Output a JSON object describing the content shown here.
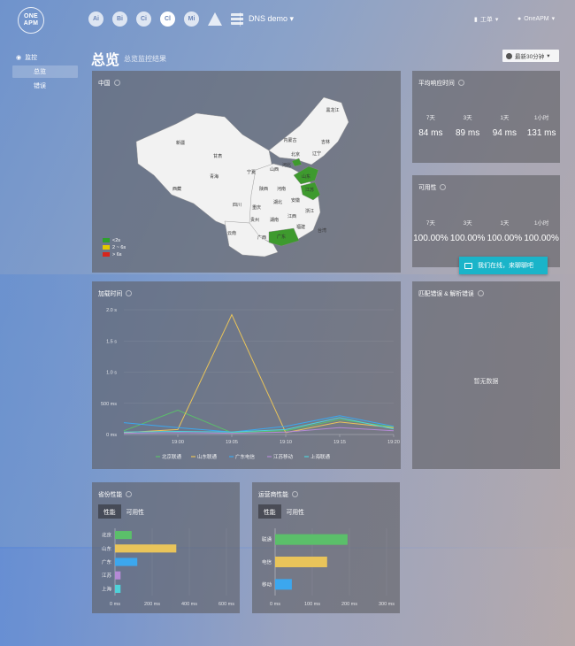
{
  "header": {
    "logo_line1": "ONE",
    "logo_line2": "APM",
    "nav_icons": [
      {
        "name": "ai-icon",
        "label": "Ai"
      },
      {
        "name": "bi-icon",
        "label": "Bi"
      },
      {
        "name": "ci-icon",
        "label": "Ci"
      },
      {
        "name": "cl-icon",
        "label": "Cl"
      },
      {
        "name": "mi-icon",
        "label": "Mi"
      },
      {
        "name": "alert-icon",
        "label": ""
      },
      {
        "name": "list-icon",
        "label": ""
      }
    ],
    "app_name": "DNS demo",
    "tickets": "工单",
    "user": "OneAPM"
  },
  "sidebar": {
    "section": "监控",
    "items": [
      {
        "label": "总览",
        "active": true
      },
      {
        "label": "错误",
        "active": false
      }
    ]
  },
  "page": {
    "title": "总览",
    "subtitle": "总览监控结果",
    "time_range": "最新30分钟"
  },
  "china_map": {
    "title": "中国",
    "legend": [
      {
        "label": "<2s",
        "color": "#2ea02e"
      },
      {
        "label": "2 ~ 6s",
        "color": "#e3c800"
      },
      {
        "label": "> 6s",
        "color": "#d7261e"
      }
    ],
    "provinces": [
      "新疆",
      "西藏",
      "青海",
      "甘肃",
      "内蒙古",
      "黑龙江",
      "吉林",
      "辽宁",
      "河北",
      "北京",
      "山西",
      "宁夏",
      "陕西",
      "河南",
      "山东",
      "江苏",
      "安徽",
      "湖北",
      "四川",
      "重庆",
      "贵州",
      "湖南",
      "江西",
      "浙江",
      "福建",
      "云南",
      "广西",
      "广东",
      "台湾"
    ]
  },
  "avg_response": {
    "title": "平均响应时间",
    "cols": [
      {
        "label": "7天",
        "value": "84 ms"
      },
      {
        "label": "3天",
        "value": "89 ms"
      },
      {
        "label": "1天",
        "value": "94 ms"
      },
      {
        "label": "1小时",
        "value": "131 ms"
      }
    ]
  },
  "availability": {
    "title": "可用性",
    "cols": [
      {
        "label": "7天",
        "value": "100.00%"
      },
      {
        "label": "3天",
        "value": "100.00%"
      },
      {
        "label": "1天",
        "value": "100.00%"
      },
      {
        "label": "1小时",
        "value": "100.00%"
      }
    ]
  },
  "chat": {
    "label": "我们在线，来聊聊吧"
  },
  "errors_panel": {
    "title": "匹配错误 & 解析错误",
    "empty": "暂无数据"
  },
  "load_time": {
    "title": "加载时间",
    "chart_data": {
      "type": "line",
      "x": [
        "18:50",
        "19:00",
        "19:05",
        "19:10",
        "19:15",
        "19:20"
      ],
      "x_ticks": [
        "19:00",
        "19:05",
        "19:10",
        "19:15",
        "19:20"
      ],
      "y_ticks": [
        "0 ms",
        "500 ms",
        "1.0 s",
        "1.5 s",
        "2.0 s"
      ],
      "ylim": [
        0,
        2000
      ],
      "series": [
        {
          "name": "北京联通",
          "color": "#5bbf6a",
          "values": [
            60,
            390,
            30,
            60,
            240,
            120
          ]
        },
        {
          "name": "山东联通",
          "color": "#e9c45a",
          "values": [
            30,
            80,
            1920,
            30,
            200,
            110
          ]
        },
        {
          "name": "广东电信",
          "color": "#3ca7ee",
          "values": [
            190,
            110,
            40,
            130,
            300,
            130
          ]
        },
        {
          "name": "江苏移动",
          "color": "#b58ad6",
          "values": [
            20,
            30,
            20,
            40,
            110,
            60
          ]
        },
        {
          "name": "上海联通",
          "color": "#4fd1d9",
          "values": [
            40,
            50,
            40,
            80,
            270,
            90
          ]
        }
      ]
    }
  },
  "province_perf": {
    "title": "省份性能",
    "tabs": [
      "性能",
      "可用性"
    ],
    "chart_data": {
      "type": "bar",
      "orientation": "horizontal",
      "categories": [
        "北京",
        "山东",
        "广东",
        "江苏",
        "上海"
      ],
      "values": [
        90,
        330,
        120,
        30,
        30
      ],
      "colors": [
        "#5bbf6a",
        "#e9c45a",
        "#3ca7ee",
        "#b58ad6",
        "#4fd1d9"
      ],
      "x_ticks": [
        "0 ms",
        "200 ms",
        "400 ms",
        "600 ms"
      ],
      "xlim": [
        0,
        600
      ]
    }
  },
  "isp_perf": {
    "title": "运营商性能",
    "tabs": [
      "性能",
      "可用性"
    ],
    "chart_data": {
      "type": "bar",
      "orientation": "horizontal",
      "categories": [
        "联通",
        "电信",
        "移动"
      ],
      "values": [
        195,
        140,
        45
      ],
      "colors": [
        "#5bbf6a",
        "#e9c45a",
        "#3ca7ee"
      ],
      "x_ticks": [
        "0 ms",
        "100 ms",
        "200 ms",
        "300 ms"
      ],
      "xlim": [
        0,
        300
      ]
    }
  }
}
